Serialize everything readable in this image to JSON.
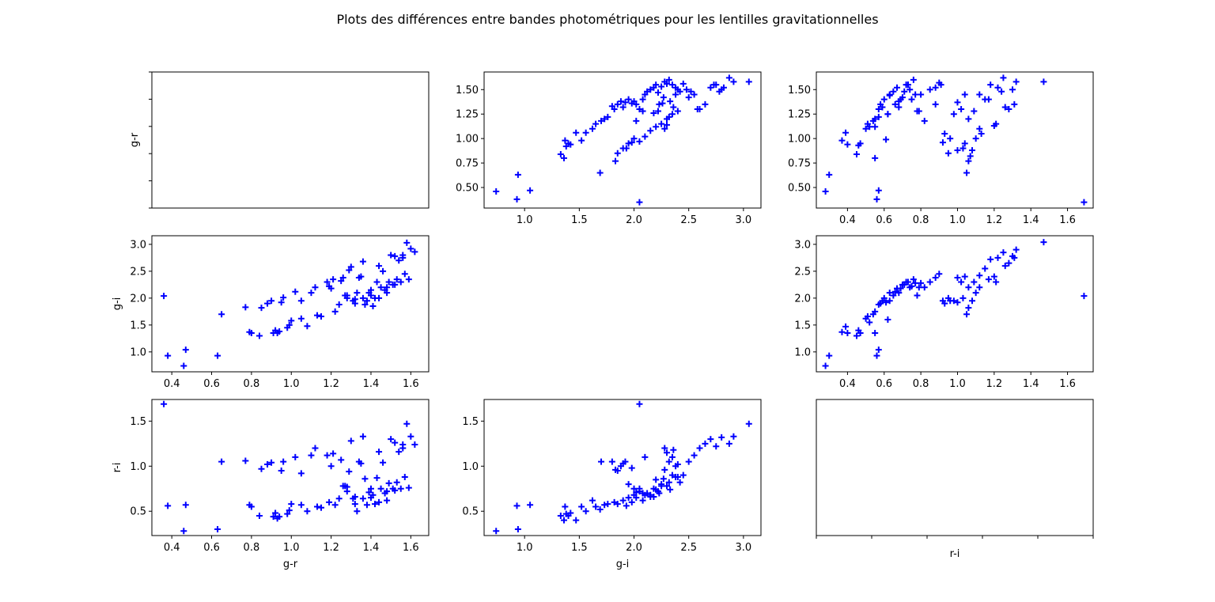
{
  "figure": {
    "title": "Plots des différences entre bandes photométriques pour les lentilles gravitationnelles",
    "marker_color": "#0000ff",
    "marker": "plus"
  },
  "chart_data": [
    {
      "id": "p00",
      "type": "empty",
      "row": 0,
      "col": 0,
      "xlabel": "",
      "ylabel": "g-r",
      "xlim": [
        0,
        1
      ],
      "ylim": [
        0,
        1
      ],
      "xticks": [],
      "xtick_labels": [],
      "yticks": [
        0,
        0.2,
        0.4,
        0.6,
        0.8,
        1.0
      ],
      "ytick_labels": [
        "",
        "",
        "",
        "",
        "",
        ""
      ],
      "x": [],
      "y": []
    },
    {
      "id": "p01",
      "type": "scatter",
      "row": 0,
      "col": 1,
      "xlabel": "",
      "ylabel": "",
      "xlim": [
        0.63,
        3.16
      ],
      "ylim": [
        0.29,
        1.68
      ],
      "xticks": [
        1.0,
        1.5,
        2.0,
        2.5,
        3.0
      ],
      "xtick_labels": [
        "1.0",
        "1.5",
        "2.0",
        "2.5",
        "3.0"
      ],
      "yticks": [
        0.5,
        0.75,
        1.0,
        1.25,
        1.5
      ],
      "ytick_labels": [
        "0.50",
        "0.75",
        "1.00",
        "1.25",
        "1.50"
      ],
      "x": [
        0.74,
        0.93,
        0.94,
        1.05,
        1.33,
        1.36,
        1.37,
        1.38,
        1.4,
        1.42,
        1.47,
        1.52,
        1.56,
        1.62,
        1.65,
        1.7,
        1.73,
        1.76,
        1.69,
        1.8,
        1.82,
        1.85,
        1.88,
        1.9,
        1.92,
        1.95,
        1.98,
        2.0,
        2.02,
        2.05,
        2.08,
        2.1,
        2.12,
        2.15,
        2.18,
        2.2,
        2.22,
        2.25,
        2.28,
        2.3,
        2.32,
        2.35,
        2.38,
        2.4,
        2.45,
        2.5,
        2.55,
        2.6,
        2.65,
        2.7,
        2.75,
        2.8,
        2.87,
        2.91,
        3.05,
        2.05,
        1.85,
        1.9,
        1.95,
        2.0,
        2.05,
        2.1,
        2.15,
        2.2,
        2.25,
        2.3,
        2.35,
        2.4,
        2.28,
        2.32,
        2.36,
        1.83,
        1.93,
        1.98,
        2.02,
        2.08,
        2.18,
        2.23,
        2.27,
        2.33,
        2.38,
        2.42,
        2.48,
        2.52,
        2.58,
        2.73,
        2.78,
        2.82,
        2.22,
        2.26,
        2.3
      ],
      "y": [
        0.46,
        0.38,
        0.63,
        0.47,
        0.84,
        0.8,
        0.98,
        0.92,
        0.95,
        0.94,
        1.06,
        0.98,
        1.06,
        1.1,
        1.15,
        1.18,
        1.2,
        1.22,
        0.65,
        1.33,
        1.3,
        1.35,
        1.38,
        1.32,
        1.37,
        1.4,
        1.36,
        1.38,
        1.35,
        1.3,
        1.4,
        1.45,
        1.48,
        1.5,
        1.52,
        1.55,
        1.47,
        1.53,
        1.58,
        1.56,
        1.6,
        1.55,
        1.52,
        1.5,
        1.56,
        1.42,
        1.45,
        1.3,
        1.35,
        1.52,
        1.55,
        1.5,
        1.62,
        1.58,
        1.58,
        0.35,
        0.85,
        0.9,
        0.95,
        1.0,
        0.97,
        1.02,
        1.08,
        1.12,
        1.15,
        1.2,
        1.25,
        1.28,
        1.1,
        1.22,
        1.32,
        0.77,
        0.9,
        0.96,
        1.18,
        1.28,
        1.26,
        1.35,
        1.42,
        1.38,
        1.45,
        1.48,
        1.5,
        1.48,
        1.3,
        1.55,
        1.48,
        1.52,
        1.28,
        1.36,
        1.14
      ],
      "labels": []
    },
    {
      "id": "p02",
      "type": "scatter",
      "row": 0,
      "col": 2,
      "xlabel": "",
      "ylabel": "",
      "xlim": [
        0.23,
        1.74
      ],
      "ylim": [
        0.29,
        1.68
      ],
      "xticks": [
        0.4,
        0.6,
        0.8,
        1.0,
        1.2,
        1.4,
        1.6
      ],
      "xtick_labels": [
        "0.4",
        "0.6",
        "0.8",
        "1.0",
        "1.2",
        "1.4",
        "1.6"
      ],
      "yticks": [
        0.5,
        0.75,
        1.0,
        1.25,
        1.5
      ],
      "ytick_labels": [
        "0.50",
        "0.75",
        "1.00",
        "1.25",
        "1.50"
      ],
      "x": [
        0.28,
        0.3,
        0.37,
        0.39,
        0.4,
        0.45,
        0.46,
        0.47,
        0.5,
        0.51,
        0.52,
        0.54,
        0.55,
        0.56,
        0.57,
        0.58,
        0.6,
        0.62,
        0.63,
        0.65,
        0.67,
        0.68,
        0.7,
        0.72,
        0.74,
        0.76,
        0.78,
        0.8,
        0.82,
        0.85,
        0.88,
        0.9,
        0.92,
        0.95,
        0.98,
        1.0,
        1.02,
        1.04,
        1.05,
        1.06,
        1.08,
        1.1,
        1.12,
        1.15,
        1.18,
        1.2,
        1.22,
        1.25,
        1.28,
        1.3,
        1.32,
        1.47,
        1.69,
        0.55,
        0.57,
        0.59,
        0.61,
        0.63,
        0.66,
        0.69,
        0.71,
        0.73,
        0.75,
        0.77,
        0.79,
        0.93,
        0.96,
        1.0,
        1.03,
        1.06,
        1.09,
        1.12,
        1.17,
        1.21,
        1.26,
        1.31,
        0.55,
        0.57,
        0.62,
        0.68,
        0.73,
        0.88,
        0.91,
        1.04,
        1.07,
        1.13,
        1.24
      ],
      "y": [
        0.46,
        0.63,
        0.98,
        1.06,
        0.94,
        0.84,
        0.93,
        0.95,
        1.1,
        1.15,
        1.12,
        1.18,
        0.8,
        0.38,
        0.47,
        1.35,
        1.4,
        1.25,
        1.44,
        1.48,
        1.52,
        1.38,
        1.42,
        1.55,
        1.5,
        1.6,
        1.28,
        1.45,
        1.18,
        1.5,
        1.52,
        1.57,
        0.96,
        0.85,
        1.25,
        1.37,
        1.3,
        1.45,
        0.65,
        0.77,
        0.88,
        1.0,
        1.1,
        1.4,
        1.55,
        1.13,
        1.52,
        1.62,
        1.3,
        1.5,
        1.58,
        1.58,
        0.35,
        1.2,
        1.3,
        1.32,
        0.99,
        1.45,
        1.35,
        1.4,
        1.48,
        1.55,
        1.4,
        1.45,
        1.28,
        1.05,
        1.0,
        0.88,
        0.9,
        1.2,
        1.28,
        1.45,
        1.4,
        1.15,
        1.32,
        1.35,
        1.12,
        1.22,
        1.25,
        1.32,
        1.55,
        1.35,
        1.55,
        0.95,
        0.82,
        1.05,
        1.48
      ],
      "labels": []
    },
    {
      "id": "p10",
      "type": "scatter",
      "row": 1,
      "col": 0,
      "xlabel": "",
      "ylabel": "g-i",
      "xlim": [
        0.3,
        1.69
      ],
      "ylim": [
        0.63,
        3.16
      ],
      "xticks": [
        0.4,
        0.6,
        0.8,
        1.0,
        1.2,
        1.4,
        1.6
      ],
      "xtick_labels": [
        "0.4",
        "0.6",
        "0.8",
        "1.0",
        "1.2",
        "1.4",
        "1.6"
      ],
      "yticks": [
        1.0,
        1.5,
        2.0,
        2.5,
        3.0
      ],
      "ytick_labels": [
        "1.0",
        "1.5",
        "2.0",
        "2.5",
        "3.0"
      ],
      "x": [
        0.36,
        0.38,
        0.46,
        0.47,
        0.63,
        0.65,
        0.77,
        0.79,
        0.8,
        0.84,
        0.85,
        0.88,
        0.9,
        0.92,
        0.93,
        0.95,
        0.96,
        0.98,
        1.0,
        1.02,
        1.05,
        1.08,
        1.1,
        1.12,
        1.15,
        1.18,
        1.2,
        1.22,
        1.25,
        1.28,
        1.3,
        1.32,
        1.34,
        1.36,
        1.38,
        1.4,
        1.42,
        1.44,
        1.46,
        1.48,
        1.5,
        1.52,
        1.54,
        1.56,
        1.58,
        1.6,
        1.62,
        0.91,
        0.94,
        0.99,
        1.05,
        1.13,
        1.19,
        1.26,
        1.29,
        1.33,
        1.37,
        1.41,
        1.45,
        1.49,
        1.53,
        1.57,
        1.27,
        1.31,
        1.35,
        1.39,
        1.43,
        1.47,
        1.51,
        1.55,
        1.59,
        1.21,
        1.24,
        1.28,
        1.32,
        1.36,
        1.4,
        1.44,
        1.48,
        1.52,
        1.56
      ],
      "y": [
        2.04,
        0.93,
        0.74,
        1.04,
        0.93,
        1.7,
        1.83,
        1.37,
        1.35,
        1.3,
        1.82,
        1.9,
        1.95,
        1.4,
        1.35,
        1.92,
        2.01,
        1.45,
        1.58,
        2.12,
        1.95,
        1.48,
        2.1,
        2.2,
        1.66,
        2.3,
        2.18,
        1.75,
        2.32,
        2.0,
        2.58,
        1.9,
        2.38,
        2.68,
        1.95,
        2.05,
        2.0,
        2.6,
        2.5,
        2.2,
        2.8,
        2.78,
        2.7,
        2.75,
        3.03,
        2.92,
        2.86,
        1.35,
        1.38,
        1.5,
        1.62,
        1.68,
        2.22,
        2.38,
        2.52,
        2.1,
        1.88,
        1.85,
        2.2,
        2.3,
        2.35,
        2.45,
        2.05,
        1.95,
        2.4,
        2.1,
        2.3,
        2.15,
        2.25,
        2.3,
        2.35,
        2.35,
        1.88,
        2.05,
        1.98,
        2.0,
        2.15,
        2.0,
        2.1,
        2.25,
        2.8
      ],
      "labels": []
    },
    {
      "id": "p11",
      "type": "empty",
      "row": 1,
      "col": 1,
      "xlabel": "",
      "ylabel": "",
      "xlim": [
        0,
        1
      ],
      "ylim": [
        0,
        1
      ],
      "xticks": [],
      "xtick_labels": [],
      "yticks": [],
      "ytick_labels": [],
      "x": [],
      "y": [],
      "hidden": true
    },
    {
      "id": "p12",
      "type": "scatter",
      "row": 1,
      "col": 2,
      "xlabel": "",
      "ylabel": "",
      "xlim": [
        0.23,
        1.74
      ],
      "ylim": [
        0.63,
        3.16
      ],
      "xticks": [
        0.4,
        0.6,
        0.8,
        1.0,
        1.2,
        1.4,
        1.6
      ],
      "xtick_labels": [
        "0.4",
        "0.6",
        "0.8",
        "1.0",
        "1.2",
        "1.4",
        "1.6"
      ],
      "yticks": [
        1.0,
        1.5,
        2.0,
        2.5,
        3.0
      ],
      "ytick_labels": [
        "1.0",
        "1.5",
        "2.0",
        "2.5",
        "3.0"
      ],
      "x": [
        0.28,
        0.3,
        0.37,
        0.39,
        0.4,
        0.45,
        0.46,
        0.47,
        0.5,
        0.51,
        0.52,
        0.54,
        0.55,
        0.56,
        0.57,
        0.58,
        0.6,
        0.62,
        0.63,
        0.65,
        0.67,
        0.68,
        0.7,
        0.72,
        0.74,
        0.76,
        0.78,
        0.8,
        0.82,
        0.85,
        0.88,
        0.9,
        0.92,
        0.95,
        0.98,
        1.0,
        1.02,
        1.04,
        1.05,
        1.06,
        1.08,
        1.1,
        1.12,
        1.15,
        1.18,
        1.2,
        1.22,
        1.25,
        1.28,
        1.3,
        1.32,
        1.47,
        1.69,
        0.55,
        0.57,
        0.59,
        0.61,
        0.63,
        0.66,
        0.69,
        0.71,
        0.73,
        0.75,
        0.77,
        0.79,
        0.93,
        0.96,
        1.0,
        1.03,
        1.06,
        1.09,
        1.12,
        1.17,
        1.21,
        1.26,
        1.31
      ],
      "y": [
        0.74,
        0.93,
        1.37,
        1.47,
        1.35,
        1.3,
        1.4,
        1.35,
        1.62,
        1.66,
        1.55,
        1.7,
        1.35,
        0.93,
        1.04,
        1.9,
        2.0,
        1.6,
        1.95,
        2.05,
        2.18,
        2.1,
        2.25,
        2.3,
        2.2,
        2.35,
        2.05,
        2.28,
        2.2,
        2.3,
        2.38,
        2.45,
        1.95,
        2.0,
        1.95,
        2.38,
        2.3,
        2.4,
        1.7,
        1.82,
        1.95,
        2.1,
        2.2,
        2.55,
        2.72,
        2.4,
        2.75,
        2.85,
        2.65,
        2.78,
        2.9,
        3.04,
        2.04,
        1.75,
        1.88,
        1.95,
        1.92,
        2.1,
        2.12,
        2.18,
        2.25,
        2.3,
        2.22,
        2.28,
        2.2,
        1.9,
        1.95,
        1.92,
        2.0,
        2.2,
        2.3,
        2.42,
        2.35,
        2.3,
        2.6,
        2.75
      ],
      "labels": []
    },
    {
      "id": "p20",
      "type": "scatter",
      "row": 2,
      "col": 0,
      "xlabel": "g-r",
      "ylabel": "r-i",
      "xlim": [
        0.3,
        1.69
      ],
      "ylim": [
        0.23,
        1.74
      ],
      "xticks": [
        0.4,
        0.6,
        0.8,
        1.0,
        1.2,
        1.4,
        1.6
      ],
      "xtick_labels": [
        "0.4",
        "0.6",
        "0.8",
        "1.0",
        "1.2",
        "1.4",
        "1.6"
      ],
      "yticks": [
        0.5,
        1.0,
        1.5
      ],
      "ytick_labels": [
        "0.5",
        "1.0",
        "1.5"
      ],
      "x": [
        0.36,
        0.38,
        0.46,
        0.47,
        0.63,
        0.65,
        0.77,
        0.79,
        0.8,
        0.84,
        0.85,
        0.88,
        0.9,
        0.92,
        0.93,
        0.95,
        0.96,
        0.98,
        1.0,
        1.02,
        1.05,
        1.08,
        1.1,
        1.12,
        1.15,
        1.18,
        1.2,
        1.22,
        1.25,
        1.28,
        1.3,
        1.32,
        1.34,
        1.36,
        1.38,
        1.4,
        1.42,
        1.44,
        1.46,
        1.48,
        1.5,
        1.52,
        1.54,
        1.56,
        1.58,
        1.6,
        1.62,
        0.91,
        0.94,
        0.99,
        1.05,
        1.13,
        1.19,
        1.26,
        1.29,
        1.33,
        1.37,
        1.41,
        1.45,
        1.49,
        1.53,
        1.57,
        1.27,
        1.31,
        1.35,
        1.39,
        1.43,
        1.47,
        1.51,
        1.55,
        1.59,
        1.21,
        1.24,
        1.28,
        1.32,
        1.36,
        1.4,
        1.44,
        1.48,
        1.52,
        1.56
      ],
      "y": [
        1.69,
        0.56,
        0.28,
        0.57,
        0.3,
        1.05,
        1.06,
        0.57,
        0.55,
        0.45,
        0.97,
        1.02,
        1.04,
        0.48,
        0.42,
        0.95,
        1.05,
        0.47,
        0.58,
        1.1,
        0.92,
        0.5,
        1.12,
        1.2,
        0.54,
        1.12,
        1.0,
        0.57,
        1.07,
        0.72,
        1.28,
        0.58,
        1.05,
        1.33,
        0.57,
        0.65,
        0.58,
        1.16,
        1.04,
        0.72,
        1.3,
        1.26,
        1.16,
        1.2,
        1.47,
        1.33,
        1.24,
        0.44,
        0.44,
        0.51,
        0.57,
        0.55,
        0.6,
        0.78,
        0.94,
        0.5,
        0.86,
        0.68,
        0.75,
        0.81,
        0.82,
        0.88,
        0.78,
        0.64,
        1.03,
        0.71,
        0.87,
        0.7,
        0.75,
        0.75,
        0.76,
        1.14,
        0.64,
        0.77,
        0.66,
        0.64,
        0.75,
        0.6,
        0.62,
        0.73,
        1.24
      ],
      "labels": []
    },
    {
      "id": "p21",
      "type": "scatter",
      "row": 2,
      "col": 1,
      "xlabel": "g-i",
      "ylabel": "",
      "xlim": [
        0.63,
        3.16
      ],
      "ylim": [
        0.23,
        1.74
      ],
      "xticks": [
        1.0,
        1.5,
        2.0,
        2.5,
        3.0
      ],
      "xtick_labels": [
        "1.0",
        "1.5",
        "2.0",
        "2.5",
        "3.0"
      ],
      "yticks": [
        0.5,
        1.0,
        1.5
      ],
      "ytick_labels": [
        "0.5",
        "1.0",
        "1.5"
      ],
      "x": [
        0.74,
        0.93,
        0.94,
        1.05,
        1.33,
        1.36,
        1.37,
        1.38,
        1.4,
        1.42,
        1.47,
        1.52,
        1.56,
        1.62,
        1.65,
        1.7,
        1.73,
        1.76,
        1.69,
        1.8,
        1.82,
        1.85,
        1.88,
        1.9,
        1.92,
        1.95,
        1.98,
        2.0,
        2.02,
        2.05,
        2.08,
        2.1,
        2.12,
        2.15,
        2.18,
        2.2,
        2.22,
        2.25,
        2.28,
        2.3,
        2.32,
        2.35,
        2.38,
        2.4,
        2.45,
        2.5,
        2.55,
        2.6,
        2.65,
        2.7,
        2.75,
        2.8,
        2.87,
        2.91,
        3.05,
        2.05,
        1.85,
        1.9,
        1.95,
        2.0,
        2.05,
        2.1,
        2.15,
        2.2,
        2.25,
        2.3,
        2.35,
        2.4,
        2.28,
        2.32,
        2.36,
        1.83,
        1.93,
        1.98,
        2.02,
        2.08,
        2.18,
        2.23,
        2.27,
        2.33,
        2.38,
        2.42
      ],
      "y": [
        0.28,
        0.56,
        0.3,
        0.57,
        0.45,
        0.4,
        0.55,
        0.47,
        0.45,
        0.48,
        0.4,
        0.55,
        0.5,
        0.62,
        0.55,
        1.05,
        0.57,
        0.58,
        0.52,
        1.05,
        0.6,
        0.58,
        1.0,
        0.62,
        1.05,
        0.65,
        0.6,
        0.68,
        0.65,
        0.72,
        0.7,
        1.1,
        0.7,
        0.68,
        0.75,
        0.85,
        0.72,
        0.78,
        1.2,
        1.15,
        1.05,
        0.9,
        1.0,
        0.88,
        0.9,
        1.05,
        1.12,
        1.2,
        1.25,
        1.3,
        1.22,
        1.32,
        1.25,
        1.33,
        1.47,
        1.69,
        0.95,
        1.03,
        0.8,
        0.75,
        0.75,
        0.68,
        0.66,
        0.74,
        0.8,
        0.78,
        1.1,
        1.02,
        0.96,
        0.82,
        1.18,
        0.96,
        0.56,
        0.98,
        0.71,
        0.62,
        0.66,
        0.7,
        0.86,
        0.74,
        0.88,
        0.82
      ],
      "labels": []
    },
    {
      "id": "p22",
      "type": "empty",
      "row": 2,
      "col": 2,
      "xlabel": "r-i",
      "ylabel": "",
      "xlim": [
        0,
        1
      ],
      "ylim": [
        0,
        1
      ],
      "xticks": [
        0,
        0.2,
        0.4,
        0.6,
        0.8,
        1.0
      ],
      "xtick_labels": [
        "",
        "",
        "",
        "",
        "",
        ""
      ],
      "yticks": [],
      "ytick_labels": [],
      "x": [],
      "y": []
    }
  ]
}
